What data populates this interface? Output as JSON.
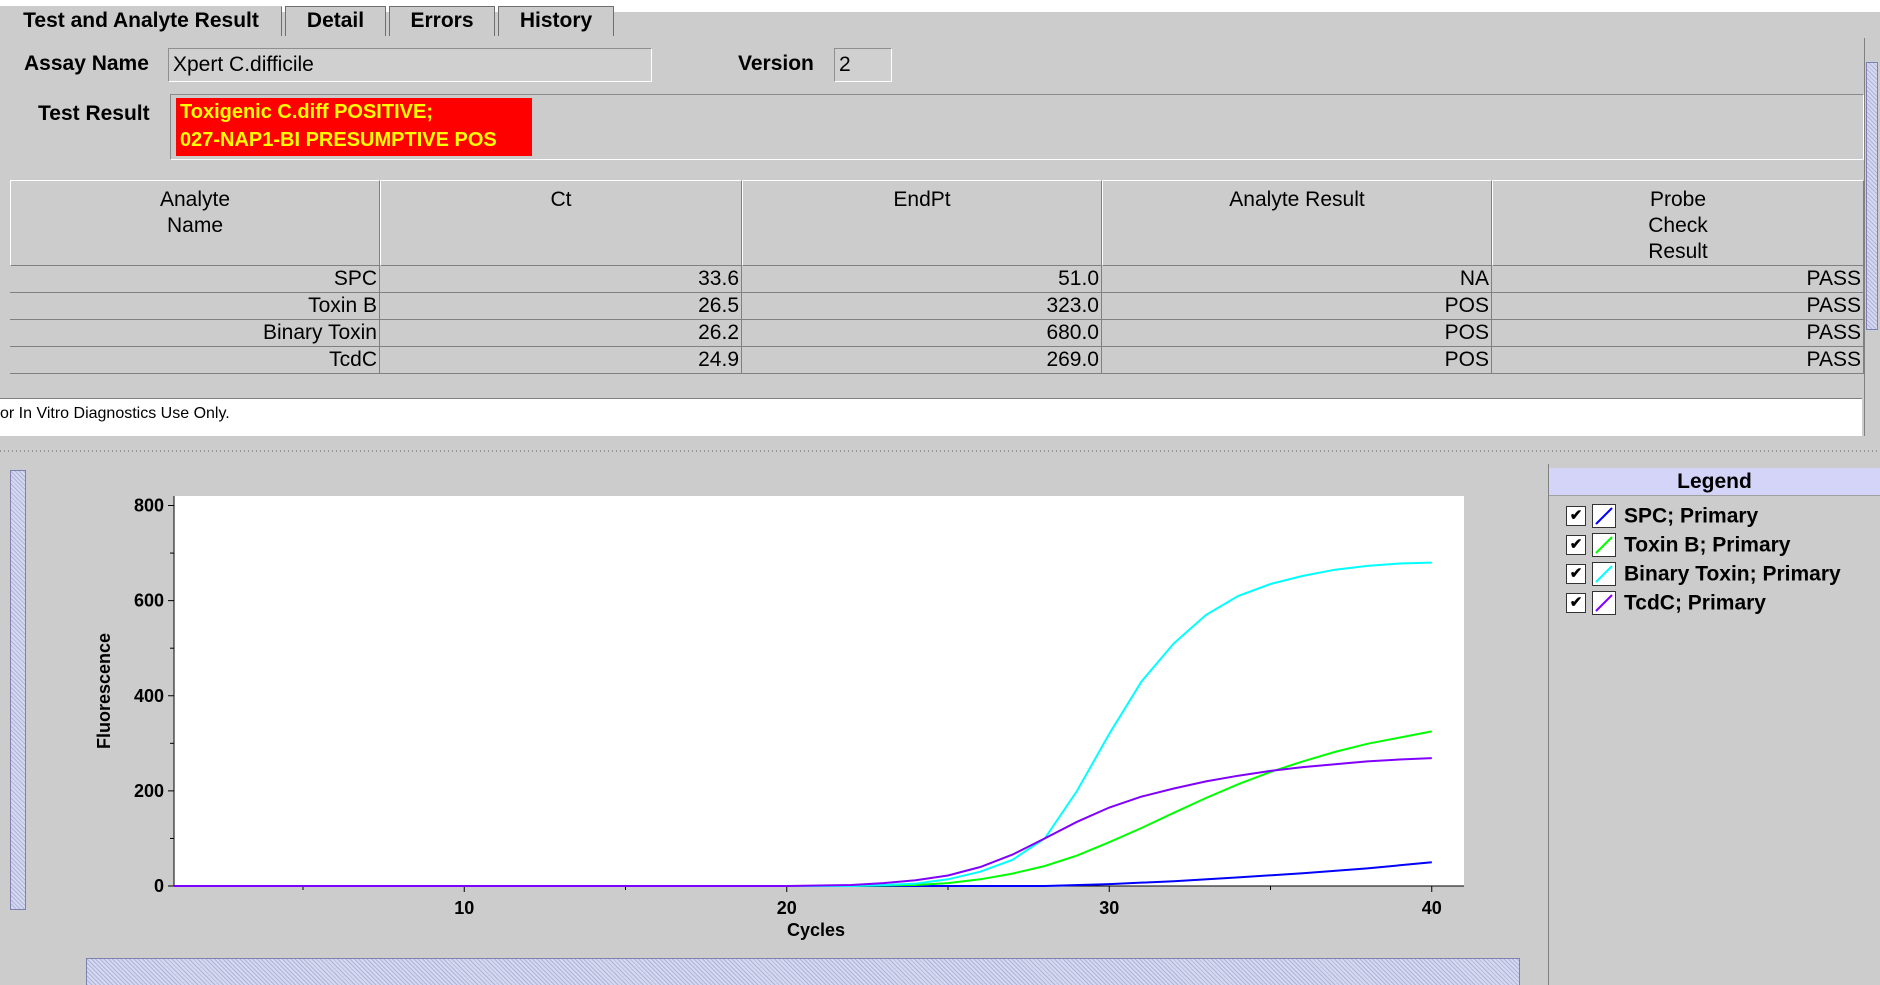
{
  "tabs": [
    {
      "label": "Test and Analyte Result"
    },
    {
      "label": "Detail"
    },
    {
      "label": "Errors"
    },
    {
      "label": "History"
    }
  ],
  "assay": {
    "name_label": "Assay Name",
    "name_value": "Xpert C.difficile",
    "version_label": "Version",
    "version_value": "2"
  },
  "test_result": {
    "label": "Test Result",
    "line1": "Toxigenic C.diff POSITIVE;",
    "line2": "027-NAP1-BI PRESUMPTIVE POS"
  },
  "table": {
    "headers": [
      "Analyte Name",
      "Ct",
      "EndPt",
      "Analyte Result",
      "Probe Check Result"
    ],
    "rows": [
      [
        "SPC",
        "33.6",
        "51.0",
        "NA",
        "PASS"
      ],
      [
        "Toxin B",
        "26.5",
        "323.0",
        "POS",
        "PASS"
      ],
      [
        "Binary Toxin",
        "26.2",
        "680.0",
        "POS",
        "PASS"
      ],
      [
        "TcdC",
        "24.9",
        "269.0",
        "POS",
        "PASS"
      ]
    ]
  },
  "footer": {
    "text": "or In Vitro Diagnostics Use Only."
  },
  "legend": {
    "title": "Legend",
    "items": [
      {
        "label": "SPC; Primary",
        "color": "#0000ff",
        "checked": true
      },
      {
        "label": "Toxin B; Primary",
        "color": "#00ff00",
        "checked": true
      },
      {
        "label": "Binary Toxin; Primary",
        "color": "#00ffff",
        "checked": true
      },
      {
        "label": "TcdC; Primary",
        "color": "#8000ff",
        "checked": true
      }
    ]
  },
  "chart_data": {
    "type": "line",
    "xlabel": "Cycles",
    "ylabel": "Fluorescence",
    "xlim": [
      1,
      41
    ],
    "ylim": [
      0,
      820
    ],
    "xticks": [
      10,
      20,
      30,
      40
    ],
    "yticks": [
      0,
      200,
      400,
      600,
      800
    ],
    "grid": false,
    "series": [
      {
        "name": "SPC; Primary",
        "color": "#0000ff",
        "x": [
          1,
          5,
          10,
          15,
          20,
          25,
          28,
          30,
          32,
          34,
          36,
          38,
          40
        ],
        "y": [
          0,
          0,
          0,
          0,
          0,
          0,
          0,
          4,
          10,
          18,
          27,
          37,
          50
        ]
      },
      {
        "name": "Toxin B; Primary",
        "color": "#00ff00",
        "x": [
          1,
          5,
          10,
          15,
          20,
          22,
          24,
          25,
          26,
          27,
          28,
          29,
          30,
          31,
          32,
          33,
          34,
          35,
          36,
          37,
          38,
          39,
          40
        ],
        "y": [
          0,
          0,
          0,
          0,
          0,
          0,
          2,
          6,
          14,
          26,
          42,
          64,
          92,
          122,
          154,
          185,
          214,
          240,
          262,
          282,
          299,
          312,
          325
        ]
      },
      {
        "name": "Binary Toxin; Primary",
        "color": "#00ffff",
        "x": [
          1,
          5,
          10,
          15,
          20,
          22,
          23,
          24,
          25,
          26,
          27,
          28,
          29,
          30,
          31,
          32,
          33,
          34,
          35,
          36,
          37,
          38,
          39,
          40
        ],
        "y": [
          0,
          0,
          0,
          0,
          0,
          0,
          2,
          5,
          14,
          30,
          55,
          100,
          200,
          320,
          430,
          510,
          570,
          610,
          635,
          652,
          665,
          673,
          678,
          680
        ]
      },
      {
        "name": "TcdC; Primary",
        "color": "#8000ff",
        "x": [
          1,
          5,
          10,
          15,
          20,
          22,
          23,
          24,
          25,
          26,
          27,
          28,
          29,
          30,
          31,
          32,
          33,
          34,
          35,
          36,
          37,
          38,
          39,
          40
        ],
        "y": [
          0,
          0,
          0,
          0,
          0,
          2,
          6,
          12,
          22,
          40,
          66,
          100,
          135,
          165,
          188,
          205,
          220,
          232,
          242,
          250,
          256,
          262,
          266,
          269
        ]
      }
    ]
  }
}
